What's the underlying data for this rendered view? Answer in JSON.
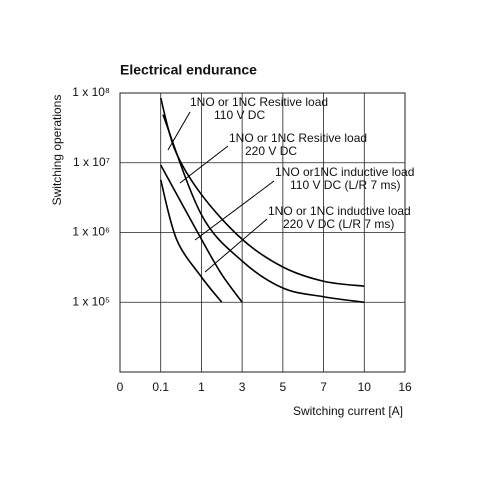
{
  "chart_data": {
    "type": "line",
    "title": "Electrical endurance",
    "x_label": "Switching current [A]",
    "y_label": "Switching operations",
    "xlim": [
      0,
      16
    ],
    "xticks": [
      0,
      0.1,
      1,
      3,
      5,
      7,
      10,
      16
    ],
    "ylim": [
      10000,
      100000000
    ],
    "log_y": true,
    "yticks": [
      {
        "value": 100000000,
        "label": "1 x 10⁸"
      },
      {
        "value": 10000000,
        "label": "1 x 10⁷"
      },
      {
        "value": 1000000,
        "label": "1 x 10⁶"
      },
      {
        "value": 100000,
        "label": "1 x 10⁵"
      }
    ],
    "grid": true,
    "series": [
      {
        "color": "#000000",
        "x": [
          0.1,
          0.42,
          1,
          3,
          5,
          7,
          10
        ],
        "values": [
          85000000,
          15000000,
          3500000,
          800000,
          320000,
          200000,
          170000
        ]
      },
      {
        "color": "#000000",
        "x": [
          0.15,
          1,
          3,
          5,
          7,
          10
        ],
        "values": [
          49000000,
          1800000,
          390000,
          160000,
          120000,
          100000
        ]
      },
      {
        "color": "#000000",
        "x": [
          0.1,
          1,
          2,
          3
        ],
        "values": [
          9300000,
          800000,
          250000,
          100000
        ]
      },
      {
        "color": "#000000",
        "x": [
          0.1,
          0.45,
          1,
          2
        ],
        "values": [
          5700000,
          800000,
          230000,
          100000
        ]
      }
    ],
    "annotations": [
      [
        "1NO or 1NC Resitive load",
        "110 V DC"
      ],
      [
        "1NO or 1NC Resitive load",
        "220 V DC"
      ],
      [
        "1NO or1NC inductive load",
        "110 V DC (L/R 7 ms)"
      ],
      [
        "1NO or 1NC inductive load",
        "220 V DC (L/R 7 ms)"
      ]
    ]
  }
}
